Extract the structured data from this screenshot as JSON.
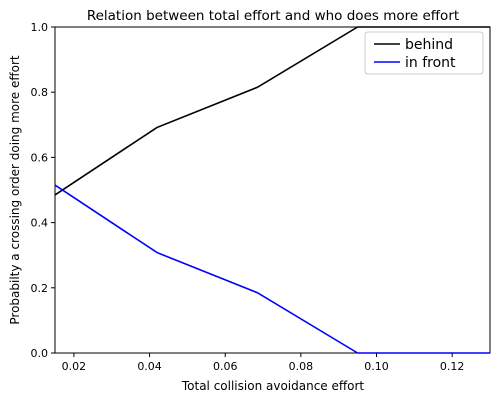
{
  "chart_data": {
    "type": "line",
    "title": "Relation between total effort and who does more effort",
    "xlabel": "Total collision avoidance effort",
    "ylabel": "Probabilty a crossing order doing more effort",
    "xlim": [
      0.015,
      0.13
    ],
    "ylim": [
      0.0,
      1.0
    ],
    "xticks": [
      0.02,
      0.04,
      0.06,
      0.08,
      0.1,
      0.12
    ],
    "xtick_labels": [
      "0.02",
      "0.04",
      "0.06",
      "0.08",
      "0.10",
      "0.12"
    ],
    "yticks": [
      0.0,
      0.2,
      0.4,
      0.6,
      0.8,
      1.0
    ],
    "ytick_labels": [
      "0.0",
      "0.2",
      "0.4",
      "0.6",
      "0.8",
      "1.0"
    ],
    "legend_position": "top-right",
    "series": [
      {
        "name": "behind",
        "color": "#000000",
        "x": [
          0.015,
          0.042,
          0.0685,
          0.095,
          0.13
        ],
        "y": [
          0.485,
          0.692,
          0.815,
          1.0,
          1.0
        ]
      },
      {
        "name": "in front",
        "color": "#0000ff",
        "x": [
          0.015,
          0.042,
          0.0685,
          0.095,
          0.13
        ],
        "y": [
          0.515,
          0.308,
          0.185,
          0.0,
          0.0
        ]
      }
    ]
  }
}
